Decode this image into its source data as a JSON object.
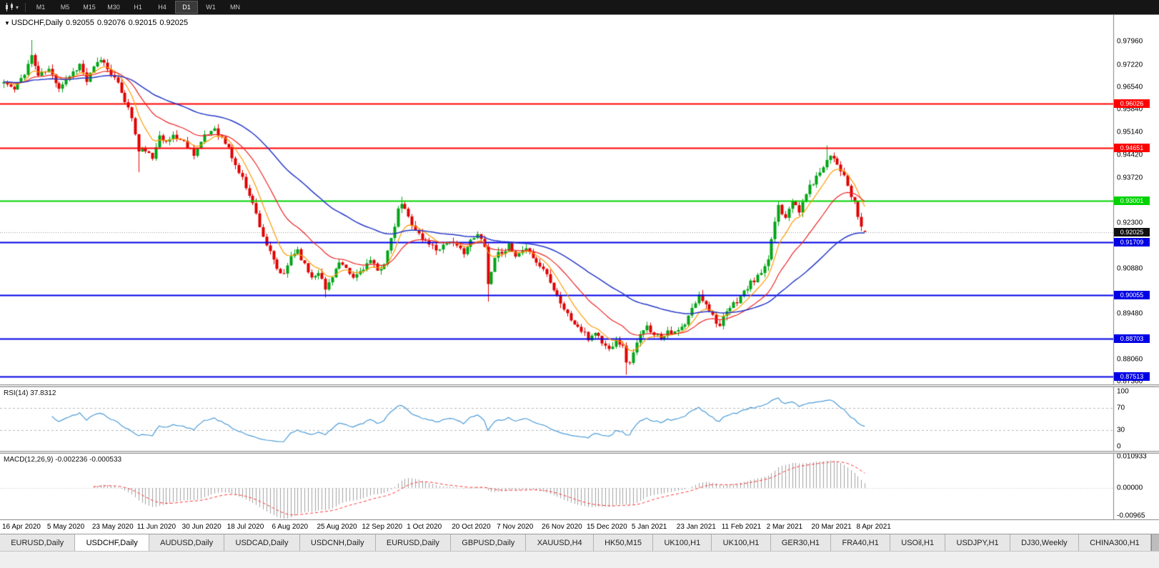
{
  "toolbar": {
    "timeframes": [
      "M1",
      "M5",
      "M15",
      "M30",
      "H1",
      "H4",
      "D1",
      "W1",
      "MN"
    ],
    "active_timeframe": "D1"
  },
  "symbol_header": {
    "marker": "▼",
    "symbol": "USDCHF,Daily",
    "open": "0.92055",
    "high": "0.92076",
    "low": "0.92015",
    "close": "0.92025"
  },
  "price_axis": {
    "plain_labels": [
      "0.97960",
      "0.97220",
      "0.96540",
      "0.95840",
      "0.95140",
      "0.94420",
      "0.93720",
      "0.92300",
      "0.90880",
      "0.89480",
      "0.88060",
      "0.87360"
    ],
    "current_badge": {
      "label": "0.92025",
      "value": 0.92025,
      "bg": "#111111"
    }
  },
  "rsi_panel": {
    "label": "RSI(14) 37.8312",
    "period": 14,
    "current": 37.8312,
    "line_color": "#4a9ad6",
    "dashed_levels": [
      70,
      30
    ],
    "axis_labels": [
      {
        "text": "100",
        "value": 100
      },
      {
        "text": "70",
        "value": 70
      },
      {
        "text": "30",
        "value": 30
      },
      {
        "text": "0",
        "value": 0
      }
    ]
  },
  "macd_panel": {
    "label": "MACD(12,26,9) -0.002236 -0.000533",
    "fast": 12,
    "slow": 26,
    "signal": 9,
    "current_macd": -0.002236,
    "current_signal": -0.000533,
    "hist_color": "#a0a0a0",
    "signal_color": "#ff3333",
    "axis_labels": [
      {
        "text": "0.010933",
        "value": 0.010933
      },
      {
        "text": "0.00000",
        "value": 0
      },
      {
        "text": "-0.00965",
        "value": -0.00965
      }
    ]
  },
  "tabs": {
    "active_index": 1,
    "items": [
      "EURUSD,Daily",
      "USDCHF,Daily",
      "AUDUSD,Daily",
      "USDCAD,Daily",
      "USDCNH,Daily",
      "EURUSD,Daily",
      "GBPUSD,Daily",
      "XAUUSD,H4",
      "HK50,M15",
      "UK100,H1",
      "UK100,H1",
      "GER30,H1",
      "FRA40,H1",
      "USOil,H1",
      "USDJPY,H1",
      "DJ30,Weekly",
      "CHINA300,H1"
    ]
  },
  "chart_data": {
    "type": "candlestick",
    "symbol": "USDCHF",
    "timeframe": "Daily",
    "ohlc_current": {
      "open": 0.92055,
      "high": 0.92076,
      "low": 0.92015,
      "close": 0.92025
    },
    "x_axis_dates": [
      "16 Apr 2020",
      "5 May 2020",
      "23 May 2020",
      "11 Jun 2020",
      "30 Jun 2020",
      "18 Jul 2020",
      "6 Aug 2020",
      "25 Aug 2020",
      "12 Sep 2020",
      "1 Oct 2020",
      "20 Oct 2020",
      "7 Nov 2020",
      "26 Nov 2020",
      "15 Dec 2020",
      "5 Jan 2021",
      "23 Jan 2021",
      "11 Feb 2021",
      "2 Mar 2021",
      "20 Mar 2021",
      "8 Apr 2021"
    ],
    "candles_per_tick": 13,
    "candle_count": 250,
    "price_range_top": 0.9879,
    "price_range_bottom": 0.8727,
    "horizontal_lines": [
      {
        "value": 0.96026,
        "label": "0.96026",
        "color": "#ff0000",
        "width": 2
      },
      {
        "value": 0.94651,
        "label": "0.94651",
        "color": "#ff0000",
        "width": 2
      },
      {
        "value": 0.93001,
        "label": "0.93001",
        "color": "#00d300",
        "width": 2
      },
      {
        "value": 0.91709,
        "label": "0.91709",
        "color": "#0000e6",
        "width": 2
      },
      {
        "value": 0.90055,
        "label": "0.90055",
        "color": "#0000e6",
        "width": 2
      },
      {
        "value": 0.88703,
        "label": "0.88703",
        "color": "#0000e6",
        "width": 2
      },
      {
        "value": 0.87513,
        "label": "0.87513",
        "color": "#0000e6",
        "width": 2
      }
    ],
    "moving_averages": [
      {
        "period": 8,
        "type": "ema",
        "color": "#ff9900"
      },
      {
        "period": 21,
        "type": "ema",
        "color": "#ee2222"
      },
      {
        "period": 55,
        "type": "ema",
        "color": "#2538c8"
      }
    ],
    "up_color": "#00a416",
    "down_color": "#df0000",
    "seed": 11,
    "noise": 0.0018,
    "close_anchors": [
      [
        0,
        0.967
      ],
      [
        3,
        0.9645
      ],
      [
        6,
        0.97
      ],
      [
        8,
        0.9752
      ],
      [
        10,
        0.969
      ],
      [
        13,
        0.9708
      ],
      [
        16,
        0.9655
      ],
      [
        19,
        0.969
      ],
      [
        22,
        0.9725
      ],
      [
        24,
        0.9672
      ],
      [
        26,
        0.9713
      ],
      [
        28,
        0.9742
      ],
      [
        31,
        0.97
      ],
      [
        34,
        0.964
      ],
      [
        37,
        0.956
      ],
      [
        39,
        0.9452
      ],
      [
        41,
        0.946
      ],
      [
        43,
        0.9425
      ],
      [
        45,
        0.9512
      ],
      [
        47,
        0.9478
      ],
      [
        49,
        0.9505
      ],
      [
        52,
        0.9482
      ],
      [
        55,
        0.9448
      ],
      [
        58,
        0.9498
      ],
      [
        61,
        0.9528
      ],
      [
        63,
        0.9495
      ],
      [
        65,
        0.9462
      ],
      [
        67,
        0.941
      ],
      [
        69,
        0.9368
      ],
      [
        71,
        0.9322
      ],
      [
        73,
        0.9258
      ],
      [
        75,
        0.919
      ],
      [
        77,
        0.9135
      ],
      [
        79,
        0.9085
      ],
      [
        81,
        0.9065
      ],
      [
        83,
        0.9128
      ],
      [
        85,
        0.9148
      ],
      [
        87,
        0.9098
      ],
      [
        89,
        0.9062
      ],
      [
        91,
        0.9082
      ],
      [
        93,
        0.9022
      ],
      [
        95,
        0.9068
      ],
      [
        97,
        0.9105
      ],
      [
        99,
        0.9082
      ],
      [
        101,
        0.9058
      ],
      [
        104,
        0.9092
      ],
      [
        106,
        0.9112
      ],
      [
        108,
        0.9078
      ],
      [
        110,
        0.9108
      ],
      [
        112,
        0.9175
      ],
      [
        114,
        0.9268
      ],
      [
        115,
        0.9292
      ],
      [
        117,
        0.9248
      ],
      [
        119,
        0.9212
      ],
      [
        121,
        0.9178
      ],
      [
        123,
        0.9168
      ],
      [
        125,
        0.9148
      ],
      [
        127,
        0.9162
      ],
      [
        129,
        0.9178
      ],
      [
        131,
        0.9152
      ],
      [
        133,
        0.9142
      ],
      [
        135,
        0.9172
      ],
      [
        137,
        0.9192
      ],
      [
        139,
        0.9165
      ],
      [
        140,
        0.904
      ],
      [
        141,
        0.9078
      ],
      [
        142,
        0.9128
      ],
      [
        144,
        0.9142
      ],
      [
        146,
        0.9158
      ],
      [
        148,
        0.9122
      ],
      [
        150,
        0.9138
      ],
      [
        152,
        0.9148
      ],
      [
        154,
        0.9105
      ],
      [
        156,
        0.9088
      ],
      [
        158,
        0.9052
      ],
      [
        160,
        0.9005
      ],
      [
        162,
        0.8962
      ],
      [
        164,
        0.8928
      ],
      [
        166,
        0.8905
      ],
      [
        168,
        0.8882
      ],
      [
        169,
        0.8868
      ],
      [
        171,
        0.8892
      ],
      [
        173,
        0.8858
      ],
      [
        175,
        0.8835
      ],
      [
        177,
        0.8872
      ],
      [
        179,
        0.8842
      ],
      [
        180,
        0.8802
      ],
      [
        181,
        0.8788
      ],
      [
        182,
        0.8832
      ],
      [
        184,
        0.8878
      ],
      [
        186,
        0.8905
      ],
      [
        188,
        0.8888
      ],
      [
        190,
        0.8872
      ],
      [
        192,
        0.8898
      ],
      [
        194,
        0.8885
      ],
      [
        197,
        0.8912
      ],
      [
        199,
        0.8962
      ],
      [
        201,
        0.9002
      ],
      [
        203,
        0.8982
      ],
      [
        205,
        0.8942
      ],
      [
        207,
        0.8908
      ],
      [
        208,
        0.8932
      ],
      [
        210,
        0.8965
      ],
      [
        212,
        0.8988
      ],
      [
        214,
        0.9015
      ],
      [
        216,
        0.9042
      ],
      [
        218,
        0.9062
      ],
      [
        220,
        0.9088
      ],
      [
        221,
        0.9108
      ],
      [
        222,
        0.9182
      ],
      [
        223,
        0.9235
      ],
      [
        224,
        0.9288
      ],
      [
        225,
        0.9265
      ],
      [
        226,
        0.9252
      ],
      [
        227,
        0.9282
      ],
      [
        228,
        0.9305
      ],
      [
        229,
        0.9278
      ],
      [
        230,
        0.9262
      ],
      [
        231,
        0.9295
      ],
      [
        232,
        0.9325
      ],
      [
        233,
        0.9342
      ],
      [
        234,
        0.9358
      ],
      [
        235,
        0.9372
      ],
      [
        236,
        0.9392
      ],
      [
        237,
        0.9412
      ],
      [
        238,
        0.9428
      ],
      [
        239,
        0.9442
      ],
      [
        240,
        0.9438
      ],
      [
        241,
        0.9415
      ],
      [
        242,
        0.9398
      ],
      [
        243,
        0.9372
      ],
      [
        244,
        0.9345
      ],
      [
        245,
        0.9312
      ],
      [
        246,
        0.9288
      ],
      [
        247,
        0.9252
      ],
      [
        248,
        0.9218
      ],
      [
        249,
        0.92025
      ]
    ],
    "spikes": [
      {
        "idx": 8,
        "high": 0.9801
      },
      {
        "idx": 39,
        "low": 0.9389
      },
      {
        "idx": 93,
        "low": 0.8998
      },
      {
        "idx": 115,
        "high": 0.9312
      },
      {
        "idx": 140,
        "low": 0.8985
      },
      {
        "idx": 180,
        "low": 0.8757
      },
      {
        "idx": 238,
        "high": 0.9472
      }
    ]
  }
}
